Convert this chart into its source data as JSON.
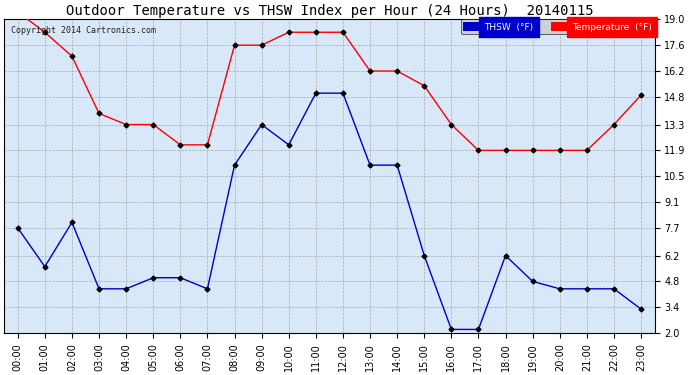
{
  "title": "Outdoor Temperature vs THSW Index per Hour (24 Hours)  20140115",
  "copyright": "Copyright 2014 Cartronics.com",
  "hours": [
    "00:00",
    "01:00",
    "02:00",
    "03:00",
    "04:00",
    "05:00",
    "06:00",
    "07:00",
    "08:00",
    "09:00",
    "10:00",
    "11:00",
    "12:00",
    "13:00",
    "14:00",
    "15:00",
    "16:00",
    "17:00",
    "18:00",
    "19:00",
    "20:00",
    "21:00",
    "22:00",
    "23:00"
  ],
  "temperature": [
    19.4,
    18.3,
    17.0,
    13.9,
    13.3,
    13.3,
    12.2,
    12.2,
    17.6,
    17.6,
    18.3,
    18.3,
    18.3,
    16.2,
    16.2,
    15.4,
    13.3,
    11.9,
    11.9,
    11.9,
    11.9,
    11.9,
    13.3,
    14.9
  ],
  "thsw": [
    7.7,
    5.6,
    8.0,
    4.4,
    4.4,
    5.0,
    5.0,
    4.4,
    11.1,
    13.3,
    12.2,
    15.0,
    15.0,
    11.1,
    11.1,
    6.2,
    2.2,
    2.2,
    6.2,
    4.8,
    4.4,
    4.4,
    4.4,
    3.3
  ],
  "temp_color": "#ff0000",
  "thsw_color": "#0000cc",
  "bg_color": "#ffffff",
  "plot_bg_color": "#d8e8f8",
  "grid_color": "#aaaaaa",
  "ylim_min": 2.0,
  "ylim_max": 19.0,
  "yticks": [
    2.0,
    3.4,
    4.8,
    6.2,
    7.7,
    9.1,
    10.5,
    11.9,
    13.3,
    14.8,
    16.2,
    17.6,
    19.0
  ],
  "marker": "D",
  "marker_size": 2.5,
  "marker_color": "#000000",
  "line_width": 1.0,
  "title_fontsize": 10,
  "tick_fontsize": 7,
  "copyright_fontsize": 6,
  "legend_thsw_bg": "#0000cc",
  "legend_temp_bg": "#ff0000",
  "legend_text_color": "#ffffff",
  "fig_width": 6.9,
  "fig_height": 3.75,
  "fig_dpi": 100
}
